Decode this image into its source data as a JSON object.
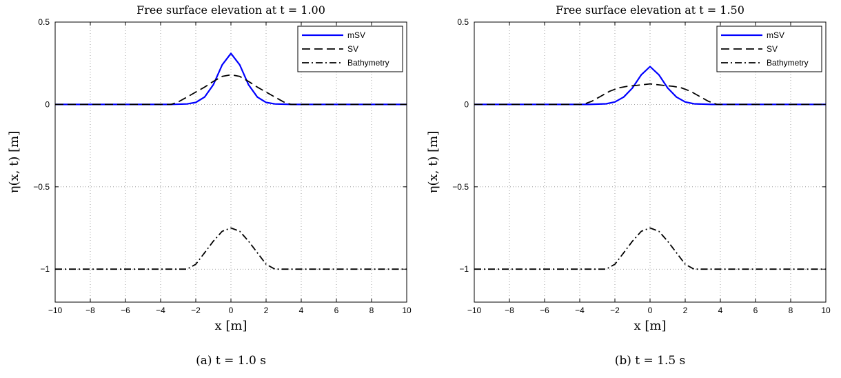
{
  "chart_data": [
    {
      "type": "line",
      "title": "Free surface elevation at t = 1.00",
      "xlabel": "x [m]",
      "ylabel": "η(x, t) [m]",
      "caption": "(a)  t = 1.0 s",
      "xlim": [
        -10,
        10
      ],
      "ylim": [
        -1.2,
        0.5
      ],
      "xticks": [
        -10,
        -8,
        -6,
        -4,
        -2,
        0,
        2,
        4,
        6,
        8,
        10
      ],
      "yticks": [
        0.5,
        0,
        -0.5,
        -1
      ],
      "xtick_labels": [
        "−10",
        "−8",
        "−6",
        "−4",
        "−2",
        "0",
        "2",
        "4",
        "6",
        "8",
        "10"
      ],
      "ytick_labels": [
        "0.5",
        "0",
        "−0.5",
        "−1"
      ],
      "grid": true,
      "legend_position": "top-right",
      "series": [
        {
          "name": "mSV",
          "color": "#0000ff",
          "style": "solid",
          "x": [
            -10,
            -3.5,
            -2.5,
            -2.0,
            -1.5,
            -1.0,
            -0.5,
            0,
            0.5,
            1.0,
            1.5,
            2.0,
            2.5,
            3.5,
            10
          ],
          "y": [
            0,
            0,
            0.003,
            0.012,
            0.045,
            0.12,
            0.24,
            0.31,
            0.24,
            0.12,
            0.045,
            0.012,
            0.003,
            0,
            0
          ]
        },
        {
          "name": "SV",
          "color": "#000000",
          "style": "dashed",
          "x": [
            -10,
            -3.4,
            -3.0,
            -2.5,
            -2.0,
            -1.5,
            -1.0,
            -0.5,
            0,
            0.5,
            1.0,
            1.5,
            2.0,
            2.5,
            3.0,
            3.4,
            10
          ],
          "y": [
            0,
            0,
            0.015,
            0.045,
            0.075,
            0.105,
            0.14,
            0.17,
            0.18,
            0.17,
            0.14,
            0.105,
            0.075,
            0.045,
            0.015,
            0,
            0
          ]
        },
        {
          "name": "Bathymetry",
          "color": "#000000",
          "style": "dashdot",
          "x": [
            -10,
            -2.5,
            -2.0,
            -1.5,
            -1.0,
            -0.5,
            0,
            0.5,
            1.0,
            1.5,
            2.0,
            2.5,
            10
          ],
          "y": [
            -1,
            -1,
            -0.97,
            -0.9,
            -0.83,
            -0.77,
            -0.75,
            -0.77,
            -0.83,
            -0.9,
            -0.97,
            -1,
            -1
          ]
        }
      ]
    },
    {
      "type": "line",
      "title": "Free surface elevation at t = 1.50",
      "xlabel": "x [m]",
      "ylabel": "η(x, t) [m]",
      "caption": "(b)  t = 1.5 s",
      "xlim": [
        -10,
        10
      ],
      "ylim": [
        -1.2,
        0.5
      ],
      "xticks": [
        -10,
        -8,
        -6,
        -4,
        -2,
        0,
        2,
        4,
        6,
        8,
        10
      ],
      "yticks": [
        0.5,
        0,
        -0.5,
        -1
      ],
      "xtick_labels": [
        "−10",
        "−8",
        "−6",
        "−4",
        "−2",
        "0",
        "2",
        "4",
        "6",
        "8",
        "10"
      ],
      "ytick_labels": [
        "0.5",
        "0",
        "−0.5",
        "−1"
      ],
      "grid": true,
      "legend_position": "top-right",
      "series": [
        {
          "name": "mSV",
          "color": "#0000ff",
          "style": "solid",
          "x": [
            -10,
            -3.5,
            -2.5,
            -2.0,
            -1.5,
            -1.0,
            -0.5,
            0,
            0.5,
            1.0,
            1.5,
            2.0,
            2.5,
            3.5,
            10
          ],
          "y": [
            0,
            0,
            0.004,
            0.015,
            0.045,
            0.1,
            0.18,
            0.23,
            0.18,
            0.1,
            0.045,
            0.015,
            0.004,
            0,
            0
          ]
        },
        {
          "name": "SV",
          "color": "#000000",
          "style": "dashed",
          "x": [
            -10,
            -3.8,
            -3.3,
            -2.8,
            -2.3,
            -1.8,
            -1.3,
            -0.8,
            0,
            0.8,
            1.3,
            1.8,
            2.3,
            2.8,
            3.3,
            3.8,
            10
          ],
          "y": [
            0,
            0,
            0.02,
            0.05,
            0.08,
            0.1,
            0.11,
            0.115,
            0.125,
            0.115,
            0.11,
            0.1,
            0.08,
            0.05,
            0.02,
            0,
            0
          ]
        },
        {
          "name": "Bathymetry",
          "color": "#000000",
          "style": "dashdot",
          "x": [
            -10,
            -2.5,
            -2.0,
            -1.5,
            -1.0,
            -0.5,
            0,
            0.5,
            1.0,
            1.5,
            2.0,
            2.5,
            10
          ],
          "y": [
            -1,
            -1,
            -0.97,
            -0.9,
            -0.83,
            -0.77,
            -0.75,
            -0.77,
            -0.83,
            -0.9,
            -0.97,
            -1,
            -1
          ]
        }
      ]
    }
  ]
}
